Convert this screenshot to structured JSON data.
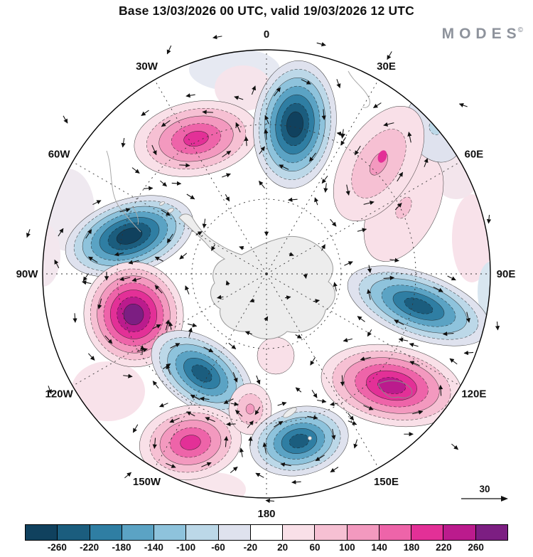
{
  "header": {
    "title": "Base 13/03/2026 00 UTC, valid 19/03/2026 12 UTC",
    "logo_text": "MODES",
    "logo_mark": "©"
  },
  "map": {
    "longitude_labels": [
      "0",
      "30E",
      "60E",
      "90E",
      "120E",
      "150E",
      "180",
      "150W",
      "120W",
      "90W",
      "60W",
      "30W"
    ]
  },
  "reference_vector": {
    "label": "30"
  },
  "chart_data": {
    "type": "heatmap",
    "subtype": "filled-contour-anomaly-map-with-wind-vectors",
    "projection": "south-polar-stereographic",
    "title": "Base 13/03/2026 00 UTC, valid 19/03/2026 12 UTC",
    "base_time": "13/03/2026 00 UTC",
    "valid_time": "19/03/2026 12 UTC",
    "branding": "MODES©",
    "longitude_tick_labels": [
      "0",
      "30E",
      "60E",
      "90E",
      "120E",
      "150E",
      "180",
      "150W",
      "120W",
      "90W",
      "60W",
      "30W"
    ],
    "reference_vector_value": 30,
    "colorbar": {
      "orientation": "horizontal",
      "tick_labels": [
        "-260",
        "-220",
        "-180",
        "-140",
        "-100",
        "-60",
        "-20",
        "20",
        "60",
        "100",
        "140",
        "180",
        "220",
        "260"
      ],
      "colors": [
        "#10415e",
        "#1b5d7e",
        "#2f7ea3",
        "#5ba3c4",
        "#8ec3dc",
        "#bcd8e8",
        "#dfe2ee",
        "#ffffff",
        "#f9e0e8",
        "#f6c0d3",
        "#f399bf",
        "#ee64a9",
        "#e33097",
        "#bb1b8d",
        "#7c1e82"
      ]
    },
    "anomaly_centers": [
      {
        "sector": "near 0E, mid-high latitudes",
        "sign": "negative",
        "peak_band": "-260 to -220"
      },
      {
        "sector": "20W-40W",
        "sign": "positive",
        "peak_band": "140 to 180"
      },
      {
        "sector": "30E-60E",
        "sign": "positive",
        "peak_band": "100 to 140"
      },
      {
        "sector": "70W-90W (Peninsula)",
        "sign": "negative",
        "peak_band": "-260 to -220"
      },
      {
        "sector": "95W-115W",
        "sign": "positive",
        "peak_band": "240 to 260+"
      },
      {
        "sector": "115W-135W",
        "sign": "negative",
        "peak_band": "-200 to -160"
      },
      {
        "sector": "150W-165W",
        "sign": "positive",
        "peak_band": "120 to 160"
      },
      {
        "sector": "near date line 180",
        "sign": "negative",
        "peak_band": "-180 to -140"
      },
      {
        "sector": "120E-155E",
        "sign": "positive",
        "peak_band": "180 to 220"
      },
      {
        "sector": "80E-110E",
        "sign": "negative",
        "peak_band": "-200 to -160"
      }
    ]
  }
}
